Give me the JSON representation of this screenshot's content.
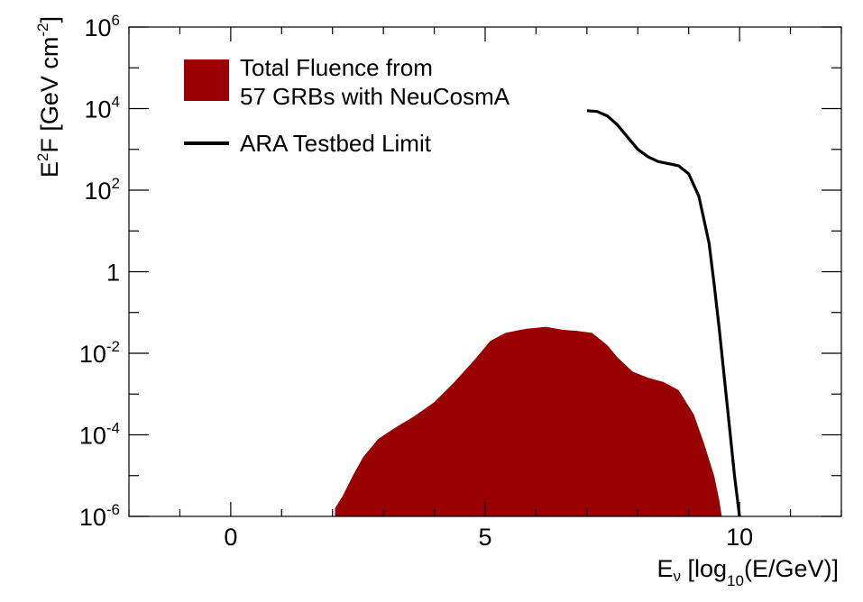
{
  "chart_data": {
    "type": "area",
    "title": "",
    "xlabel": {
      "base": "E",
      "base_sub": "ν",
      "open": " [log",
      "open_sub": "10",
      "close": "(E/GeV)]"
    },
    "ylabel": {
      "base": "E",
      "base_sup": "2",
      "mid": "F [GeV cm",
      "mid_sup": "-2",
      "close": "]"
    },
    "x_range": [
      -2,
      12
    ],
    "y_log_range": [
      -6,
      6
    ],
    "y_scale": "log",
    "grid": false,
    "x_ticks": [
      {
        "value": 0,
        "label": "0"
      },
      {
        "value": 5,
        "label": "5"
      },
      {
        "value": 10,
        "label": "10"
      }
    ],
    "y_ticks": [
      {
        "value": -6,
        "base": "10",
        "exp": "-6"
      },
      {
        "value": -4,
        "base": "10",
        "exp": "-4"
      },
      {
        "value": -2,
        "base": "10",
        "exp": "-2"
      },
      {
        "value": 0,
        "base": "1",
        "exp": ""
      },
      {
        "value": 2,
        "base": "10",
        "exp": "2"
      },
      {
        "value": 4,
        "base": "10",
        "exp": "4"
      },
      {
        "value": 6,
        "base": "10",
        "exp": "6"
      }
    ],
    "legend_position": "top-left",
    "series": [
      {
        "kind": "area",
        "color": "#990000",
        "legend": [
          "Total Fluence from",
          "57 GRBs with NeuCosmA"
        ],
        "x": [
          2.05,
          2.2,
          2.4,
          2.6,
          2.9,
          3.2,
          3.6,
          4.0,
          4.4,
          4.8,
          5.1,
          5.4,
          5.8,
          6.2,
          6.5,
          6.8,
          7.1,
          7.4,
          7.6,
          7.9,
          8.2,
          8.5,
          8.8,
          9.1,
          9.3,
          9.5,
          9.6,
          9.65
        ],
        "y_log": [
          -5.8,
          -5.5,
          -5.0,
          -4.55,
          -4.1,
          -3.85,
          -3.55,
          -3.2,
          -2.7,
          -2.15,
          -1.7,
          -1.5,
          -1.4,
          -1.35,
          -1.42,
          -1.45,
          -1.5,
          -1.8,
          -2.1,
          -2.45,
          -2.6,
          -2.7,
          -2.9,
          -3.5,
          -4.2,
          -5.0,
          -5.6,
          -6.0
        ]
      },
      {
        "kind": "line",
        "color": "#000000",
        "legend": [
          "ARA Testbed Limit"
        ],
        "x": [
          7.0,
          7.2,
          7.4,
          7.6,
          7.8,
          8.0,
          8.2,
          8.4,
          8.6,
          8.8,
          9.0,
          9.2,
          9.4,
          9.5,
          9.6,
          9.7,
          9.8,
          9.9,
          10.0
        ],
        "y_log": [
          3.95,
          3.93,
          3.82,
          3.6,
          3.3,
          3.0,
          2.82,
          2.7,
          2.65,
          2.6,
          2.4,
          1.85,
          0.7,
          -0.3,
          -1.4,
          -2.6,
          -3.8,
          -5.0,
          -6.0
        ]
      }
    ]
  }
}
